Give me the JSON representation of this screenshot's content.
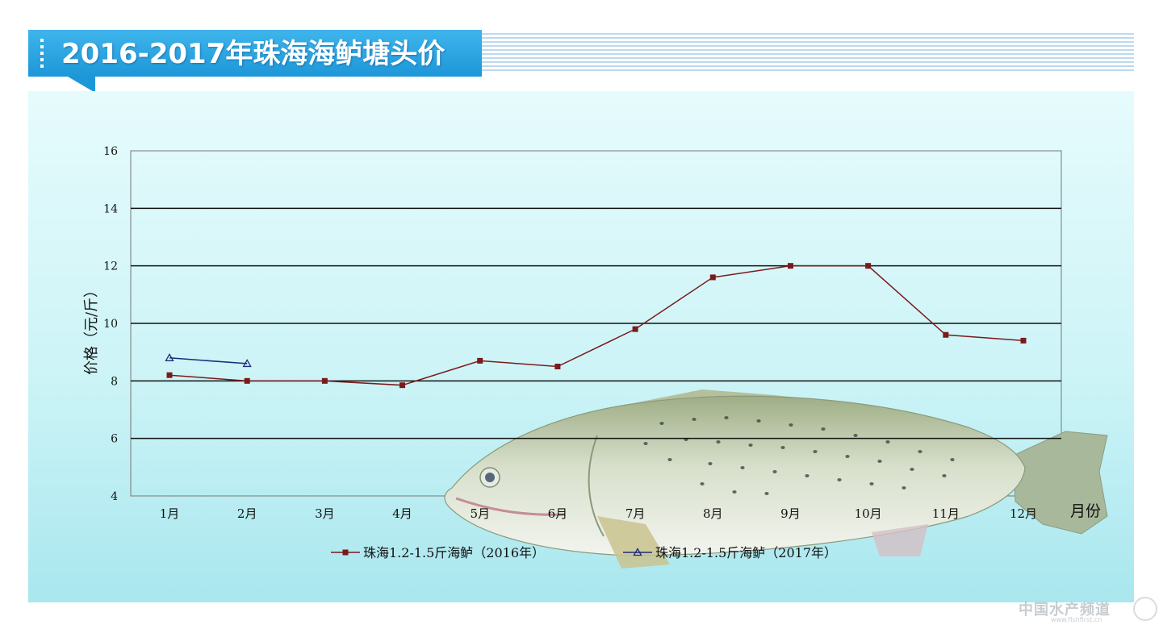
{
  "header": {
    "title": "2016-2017年珠海海鲈塘头价"
  },
  "chart_data": {
    "type": "line",
    "categories": [
      "1月",
      "2月",
      "3月",
      "4月",
      "5月",
      "6月",
      "7月",
      "8月",
      "9月",
      "10月",
      "11月",
      "12月"
    ],
    "series": [
      {
        "name": "珠海1.2-1.5斤海鲈（2016年）",
        "values": [
          8.2,
          8.0,
          8.0,
          7.85,
          8.7,
          8.5,
          9.8,
          11.6,
          12.0,
          12.0,
          9.6,
          9.4
        ],
        "color": "#7a1a1a",
        "marker": "square"
      },
      {
        "name": "珠海1.2-1.5斤海鲈（2017年）",
        "values": [
          8.8,
          8.6,
          null,
          null,
          null,
          null,
          null,
          null,
          null,
          null,
          null,
          null
        ],
        "color": "#1c2c78",
        "marker": "triangle-open"
      }
    ],
    "ylabel": "价格（元/斤）",
    "xlabel": "月份",
    "ylim": [
      4,
      16
    ],
    "yticks": [
      4,
      6,
      8,
      10,
      12,
      14,
      16
    ],
    "grid": true,
    "legend": "bottom"
  },
  "decor": {
    "fish": "sea-bass-illustration",
    "watermark": {
      "text": "中国水产频道",
      "url": "www.fishfirst.cn"
    }
  }
}
